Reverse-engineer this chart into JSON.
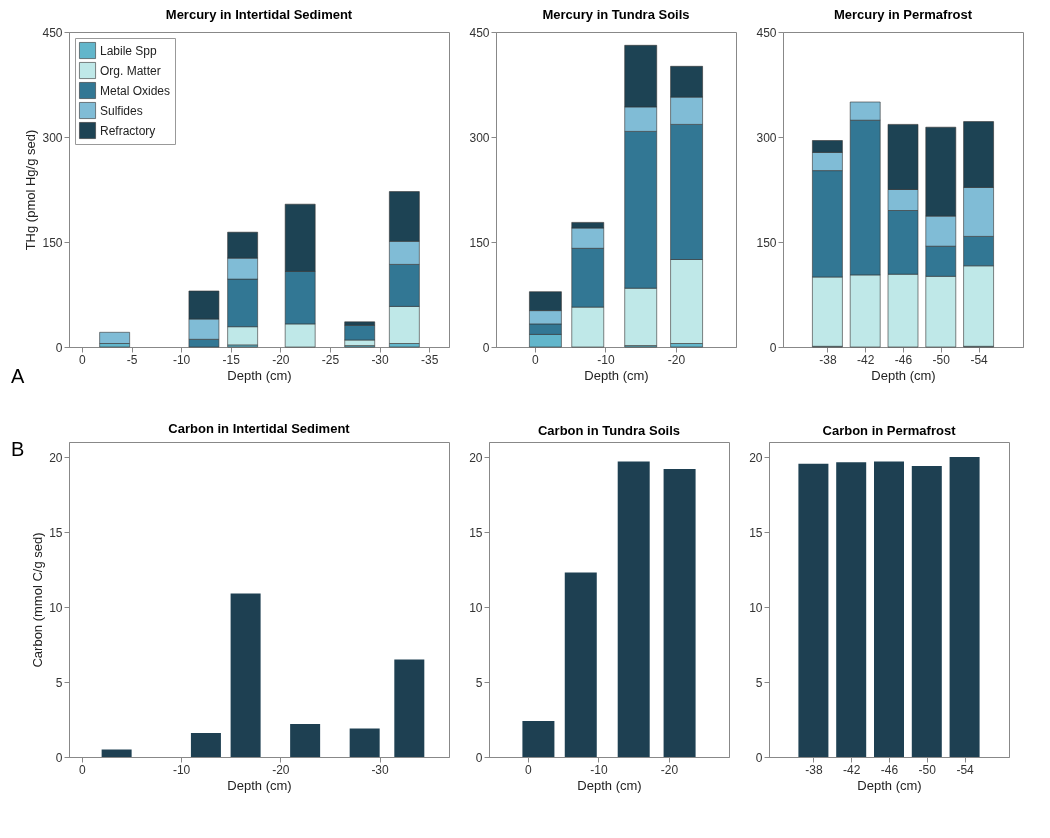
{
  "chart_data": [
    {
      "type": "bar",
      "title": "Mercury in Intertidal Sediment",
      "xlabel": "Depth (cm)",
      "ylabel": "THg (pmol Hg/g sed)",
      "stacked": true,
      "legend": "top left",
      "annotations": [
        "A"
      ],
      "x": [
        -3.3,
        -12.3,
        -16.2,
        -22,
        -28,
        -32.5
      ],
      "xlim": [
        1.3,
        -37
      ],
      "xticks": [
        0,
        -5,
        -10,
        -15,
        -20,
        -25,
        -30,
        -35
      ],
      "ylim": [
        0,
        450
      ],
      "yticks": [
        0,
        150,
        300,
        450
      ],
      "series": [
        {
          "name": "Labile Spp",
          "color": "#62b6cb",
          "values": [
            5,
            null,
            3,
            null,
            2,
            5
          ]
        },
        {
          "name": "Org. Matter",
          "color": "#bfe8e8",
          "values": [
            null,
            null,
            26,
            33,
            8,
            53
          ]
        },
        {
          "name": "Metal Oxides",
          "color": "#327794",
          "values": [
            null,
            11,
            68,
            75,
            21,
            60
          ]
        },
        {
          "name": "Sulfides",
          "color": "#80bcd6",
          "values": [
            16,
            29,
            30,
            null,
            null,
            33
          ]
        },
        {
          "name": "Refractory",
          "color": "#1d4354",
          "values": [
            null,
            40,
            37,
            96,
            5,
            71
          ]
        }
      ]
    },
    {
      "type": "bar",
      "title": "Mercury in Tundra Soils",
      "xlabel": "Depth (cm)",
      "stacked": true,
      "x": [
        -1.5,
        -7.5,
        -15,
        -21.5
      ],
      "xlim": [
        5.5,
        -28.5
      ],
      "xticks": [
        0,
        -10,
        -20
      ],
      "ylim": [
        0,
        450
      ],
      "yticks": [
        0,
        150,
        300,
        450
      ],
      "series": [
        {
          "color": "#62b6cb",
          "values": [
            18,
            null,
            2,
            5
          ]
        },
        {
          "color": "#bfe8e8",
          "values": [
            null,
            57,
            82,
            120
          ]
        },
        {
          "color": "#327794",
          "values": [
            15,
            84,
            224,
            193
          ]
        },
        {
          "color": "#80bcd6",
          "values": [
            19,
            29,
            35,
            39
          ]
        },
        {
          "color": "#1d4354",
          "values": [
            27,
            8,
            88,
            44
          ]
        }
      ]
    },
    {
      "type": "bar",
      "title": "Mercury in Permafrost",
      "xlabel": "Depth (cm)",
      "stacked": true,
      "x": [
        -38,
        -42,
        -46,
        -50,
        -54
      ],
      "xlim": [
        -33.3,
        -58.7
      ],
      "xticks": [
        -38,
        -42,
        -46,
        -50,
        -54
      ],
      "ylim": [
        0,
        450
      ],
      "yticks": [
        0,
        150,
        300,
        450
      ],
      "series": [
        {
          "color": "#62b6cb",
          "values": [
            1,
            null,
            null,
            null,
            1
          ]
        },
        {
          "color": "#bfe8e8",
          "values": [
            99,
            103,
            104,
            101,
            115
          ]
        },
        {
          "color": "#327794",
          "values": [
            152,
            221,
            91,
            43,
            42
          ]
        },
        {
          "color": "#80bcd6",
          "values": [
            26,
            26,
            30,
            43,
            70
          ]
        },
        {
          "color": "#1d4354",
          "values": [
            17,
            null,
            93,
            127,
            94
          ]
        }
      ]
    },
    {
      "type": "bar",
      "title": "Carbon in Intertidal Sediment",
      "xlabel": "Depth (cm)",
      "ylabel": "Carbon (mmol C/g sed)",
      "annotations": [
        "B"
      ],
      "x": [
        -3.5,
        -12.5,
        -16.5,
        -22.5,
        -28.5,
        -33
      ],
      "xlim": [
        1.3,
        -37
      ],
      "xticks": [
        0,
        -10,
        -20,
        -30
      ],
      "ylim": [
        0,
        21
      ],
      "yticks": [
        0,
        5,
        10,
        15,
        20
      ],
      "color": "#1e4052",
      "values": [
        0.5,
        1.6,
        10.9,
        2.2,
        1.9,
        6.5
      ]
    },
    {
      "type": "bar",
      "title": "Carbon in Tundra Soils",
      "xlabel": "Depth (cm)",
      "x": [
        -1.5,
        -7.5,
        -15,
        -21.5
      ],
      "xlim": [
        5.5,
        -28.5
      ],
      "xticks": [
        0,
        -10,
        -20
      ],
      "ylim": [
        0,
        21
      ],
      "yticks": [
        0,
        5,
        10,
        15,
        20
      ],
      "color": "#1e4052",
      "values": [
        2.4,
        12.3,
        19.7,
        19.2
      ]
    },
    {
      "type": "bar",
      "title": "Carbon in Permafrost",
      "xlabel": "Depth (cm)",
      "x": [
        -38,
        -42,
        -46,
        -50,
        -54
      ],
      "xlim": [
        -33.3,
        -58.7
      ],
      "xticks": [
        -38,
        -42,
        -46,
        -50,
        -54
      ],
      "ylim": [
        0,
        21
      ],
      "yticks": [
        0,
        5,
        10,
        15,
        20
      ],
      "color": "#1e4052",
      "values": [
        19.55,
        19.65,
        19.7,
        19.4,
        20
      ]
    }
  ]
}
